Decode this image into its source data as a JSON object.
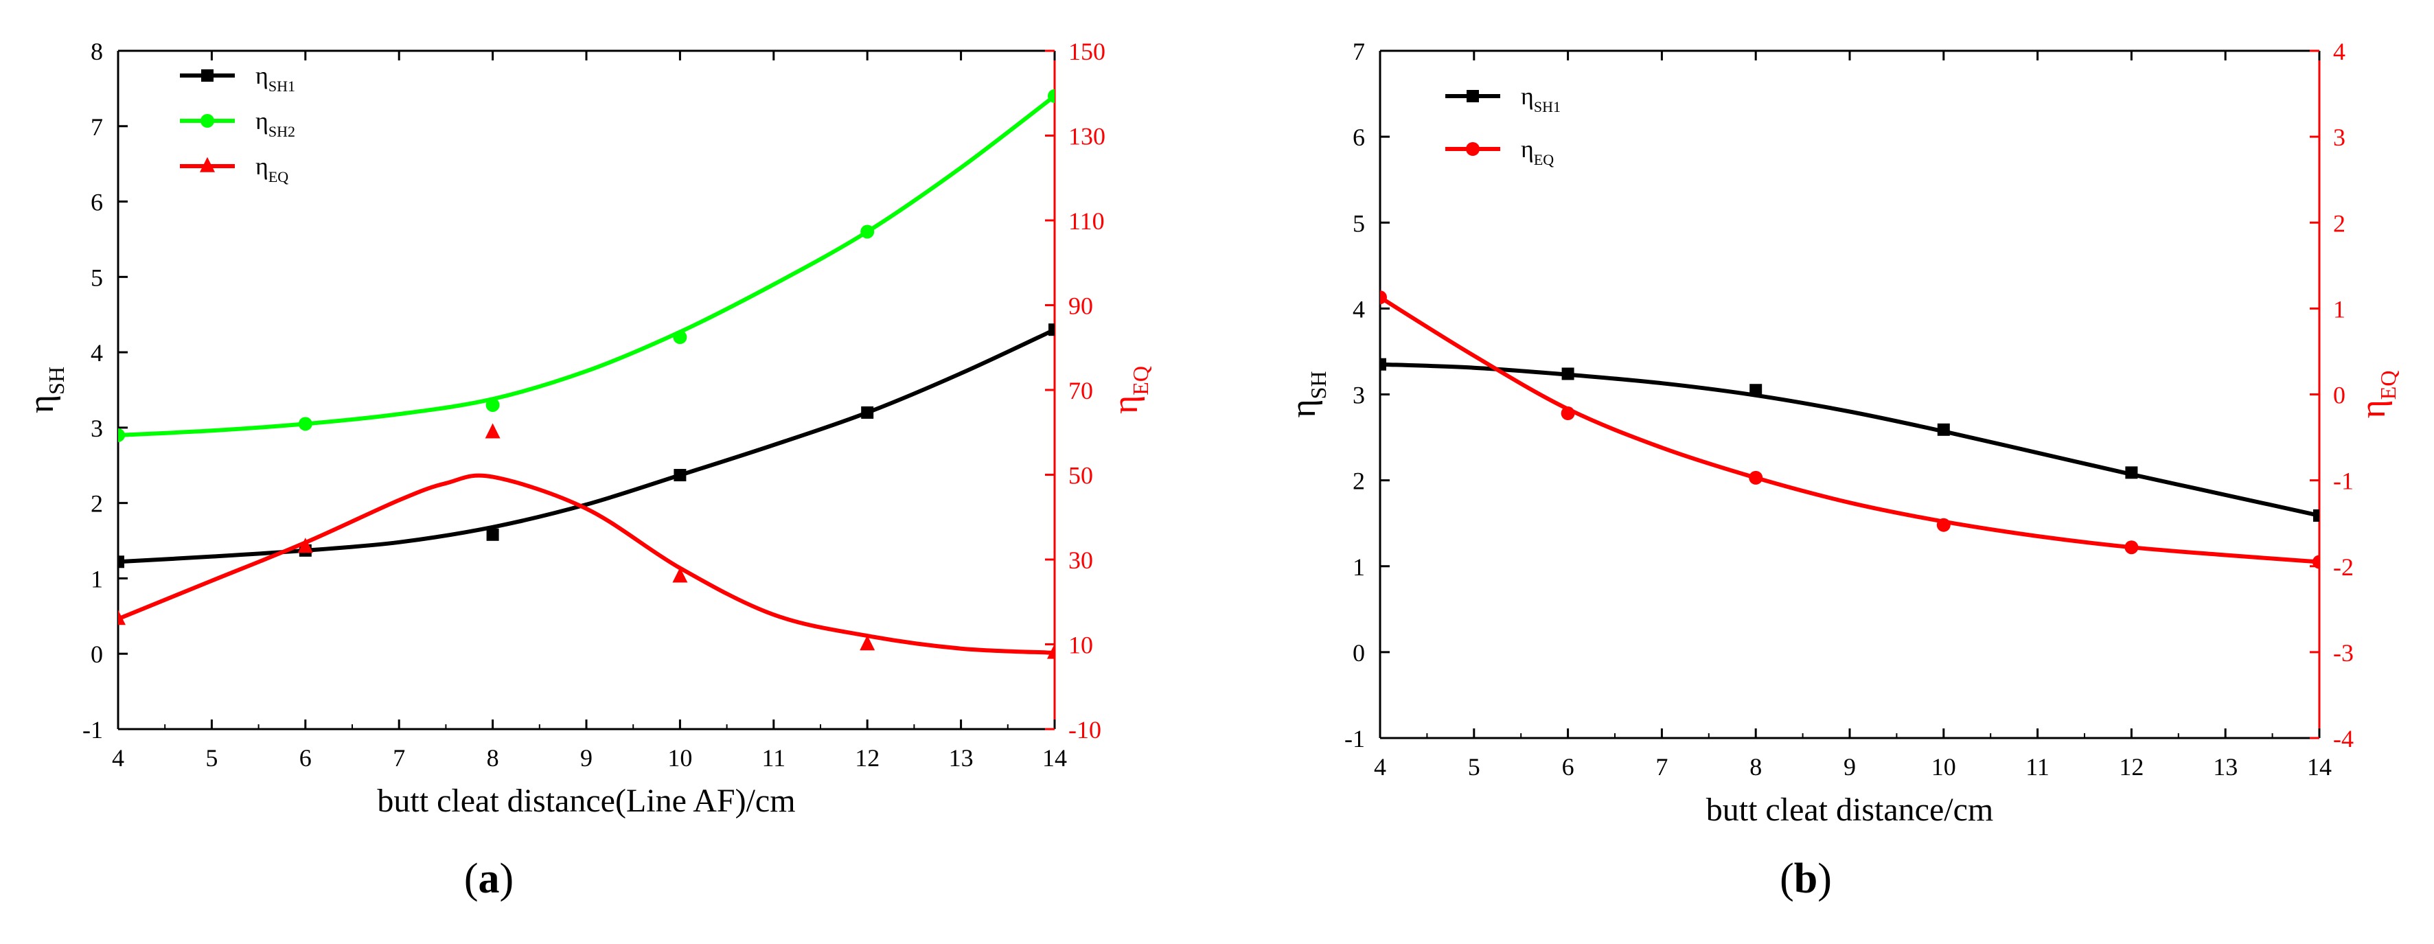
{
  "chart_data": [
    {
      "type": "line",
      "panel_label": "(a)",
      "xlabel": "butt cleat distance(Line AF)/cm",
      "ylabel_left": "η_SH",
      "ylabel_right": "η_EQ",
      "xlim": [
        4,
        14
      ],
      "xticks": [
        4,
        5,
        6,
        7,
        8,
        9,
        10,
        11,
        12,
        13,
        14
      ],
      "ylim_left": [
        -1,
        8
      ],
      "yticks_left": [
        -1,
        0,
        1,
        2,
        3,
        4,
        5,
        6,
        7,
        8
      ],
      "ylim_right": [
        -10,
        150
      ],
      "yticks_right": [
        -10,
        10,
        30,
        50,
        70,
        90,
        110,
        130,
        150
      ],
      "right_axis_color": "#ff0000",
      "legend_position": "top-left",
      "series": [
        {
          "name": "η_SH1",
          "label_main": "η",
          "label_sub": "SH1",
          "axis": "left",
          "color": "#000000",
          "marker": "square",
          "x": [
            4,
            6,
            8,
            10,
            12,
            14
          ],
          "y": [
            1.22,
            1.37,
            1.58,
            2.37,
            3.2,
            4.3
          ],
          "fit_x": [
            4,
            5,
            6,
            7,
            8,
            9,
            10,
            11,
            12,
            13,
            14
          ],
          "fit_y": [
            1.22,
            1.29,
            1.37,
            1.48,
            1.68,
            1.98,
            2.37,
            2.77,
            3.2,
            3.72,
            4.3
          ]
        },
        {
          "name": "η_SH2",
          "label_main": "η",
          "label_sub": "SH2",
          "axis": "left",
          "color": "#00ff00",
          "marker": "circle",
          "x": [
            4,
            6,
            8,
            10,
            12,
            14
          ],
          "y": [
            2.9,
            3.05,
            3.3,
            4.2,
            5.6,
            7.4
          ],
          "fit_x": [
            4,
            5,
            6,
            7,
            8,
            9,
            10,
            11,
            12,
            13,
            14
          ],
          "fit_y": [
            2.9,
            2.96,
            3.05,
            3.18,
            3.38,
            3.75,
            4.27,
            4.9,
            5.6,
            6.45,
            7.4
          ]
        },
        {
          "name": "η_EQ",
          "label_main": "η",
          "label_sub": "EQ",
          "axis": "right",
          "color": "#ff0000",
          "marker": "triangle",
          "x": [
            4,
            6,
            8,
            10,
            12,
            14
          ],
          "y": [
            16,
            33,
            60,
            26,
            10,
            8
          ],
          "fit_x": [
            4,
            5,
            6,
            7,
            7.5,
            8,
            9,
            10,
            11,
            12,
            13,
            14
          ],
          "fit_y": [
            16,
            25,
            34,
            44,
            48,
            49.5,
            42,
            28,
            17,
            12,
            9,
            8
          ]
        }
      ]
    },
    {
      "type": "line",
      "panel_label": "(b)",
      "xlabel": "butt cleat distance/cm",
      "ylabel_left": "η_SH",
      "ylabel_right": "η_EQ",
      "xlim": [
        4,
        14
      ],
      "xticks": [
        4,
        5,
        6,
        7,
        8,
        9,
        10,
        11,
        12,
        13,
        14
      ],
      "ylim_left": [
        -1,
        7
      ],
      "yticks_left": [
        -1,
        0,
        1,
        2,
        3,
        4,
        5,
        6,
        7
      ],
      "ylim_right": [
        -4,
        4
      ],
      "yticks_right": [
        -4,
        -3,
        -2,
        -1,
        0,
        1,
        2,
        3,
        4
      ],
      "right_axis_color": "#ff0000",
      "legend_position": "top-left",
      "series": [
        {
          "name": "η_SH1",
          "label_main": "η",
          "label_sub": "SH1",
          "axis": "left",
          "color": "#000000",
          "marker": "square",
          "x": [
            4,
            6,
            8,
            10,
            12,
            14
          ],
          "y": [
            3.35,
            3.24,
            3.05,
            2.59,
            2.09,
            1.59
          ],
          "fit_x": [
            4,
            5,
            6,
            7,
            8,
            9,
            10,
            11,
            12,
            13,
            14
          ],
          "fit_y": [
            3.35,
            3.31,
            3.23,
            3.13,
            2.99,
            2.8,
            2.57,
            2.32,
            2.07,
            1.83,
            1.59
          ]
        },
        {
          "name": "η_EQ",
          "label_main": "η",
          "label_sub": "EQ",
          "axis": "right",
          "color": "#ff0000",
          "marker": "circle",
          "x": [
            4,
            6,
            8,
            10,
            12,
            14
          ],
          "y": [
            1.13,
            -0.22,
            -0.97,
            -1.52,
            -1.78,
            -1.95
          ],
          "fit_x": [
            4,
            5,
            6,
            7,
            8,
            9,
            10,
            11,
            12,
            13,
            14
          ],
          "fit_y": [
            1.13,
            0.45,
            -0.17,
            -0.62,
            -0.97,
            -1.26,
            -1.48,
            -1.65,
            -1.78,
            -1.87,
            -1.95
          ]
        }
      ]
    }
  ]
}
